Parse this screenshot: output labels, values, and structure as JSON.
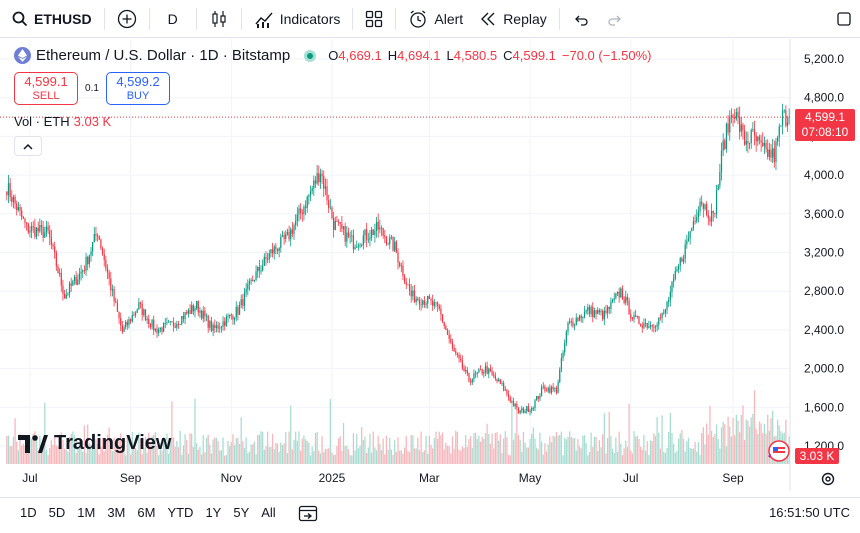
{
  "toolbar": {
    "symbol": "ETHUSD",
    "interval": "D",
    "indicators_label": "Indicators",
    "alert_label": "Alert",
    "replay_label": "Replay",
    "icons": [
      "search-icon",
      "add-symbol-icon",
      "candles-icon",
      "indicators-icon",
      "layouts-icon",
      "alert-clock-icon",
      "replay-icon",
      "undo-icon",
      "redo-icon",
      "fullscreen-icon"
    ]
  },
  "legend": {
    "title": "Ethereum / U.S. Dollar · 1D · Bitstamp",
    "o_label": "O",
    "o": "4,669.1",
    "h_label": "H",
    "h": "4,694.1",
    "l_label": "L",
    "l": "4,580.5",
    "c_label": "C",
    "c": "4,599.1",
    "change": "−70.0 (−1.50%)"
  },
  "trade": {
    "sell_price": "4,599.1",
    "sell_label": "SELL",
    "spread": "0.1",
    "buy_price": "4,599.2",
    "buy_label": "BUY"
  },
  "volume_legend": {
    "label": "Vol · ETH",
    "value": "3.03 K"
  },
  "price_tag": {
    "price": "4,599.1",
    "countdown": "07:08:10"
  },
  "volume_tag": "3.03 K",
  "watermark": "TradingView",
  "bottom_bar": {
    "ranges": [
      "1D",
      "5D",
      "1M",
      "3M",
      "6M",
      "YTD",
      "1Y",
      "5Y",
      "All"
    ],
    "clock": "16:51:50 UTC"
  },
  "colors": {
    "up": "#089981",
    "down": "#f23645",
    "up_vol": "#a7dcd1",
    "down_vol": "#f7b6bb",
    "grid": "#f0f3fa",
    "accent": "#2962ff"
  },
  "chart_data": {
    "type": "candlestick",
    "title": "Ethereum / U.S. Dollar · 1D · Bitstamp",
    "ylim": [
      1200,
      5300
    ],
    "y_ticks": [
      1200,
      1600,
      2000,
      2400,
      2800,
      3200,
      3600,
      4000,
      4400,
      4800,
      5200
    ],
    "y_tick_labels": [
      "1,200.0",
      "1,600.0",
      "2,000.0",
      "2,400.0",
      "2,800.0",
      "3,200.0",
      "3,600.0",
      "4,000.0",
      "4,400.0",
      "4,800.0",
      "5,200.0"
    ],
    "x_tick_labels": [
      "Jul",
      "Sep",
      "Nov",
      "2025",
      "Mar",
      "May",
      "Jul",
      "Sep"
    ],
    "x_tick_indices": [
      14,
      75,
      136,
      197,
      256,
      317,
      378,
      440
    ],
    "grid": true,
    "last_price": 4599.1,
    "series_name": "ETHUSD",
    "anchors": [
      [
        0,
        3880
      ],
      [
        12,
        3450
      ],
      [
        25,
        3400
      ],
      [
        35,
        2750
      ],
      [
        47,
        3050
      ],
      [
        55,
        3420
      ],
      [
        65,
        2700
      ],
      [
        70,
        2380
      ],
      [
        80,
        2650
      ],
      [
        90,
        2400
      ],
      [
        100,
        2450
      ],
      [
        115,
        2650
      ],
      [
        125,
        2400
      ],
      [
        140,
        2600
      ],
      [
        150,
        2950
      ],
      [
        160,
        3200
      ],
      [
        170,
        3350
      ],
      [
        182,
        3750
      ],
      [
        190,
        4050
      ],
      [
        198,
        3500
      ],
      [
        210,
        3300
      ],
      [
        225,
        3450
      ],
      [
        235,
        3250
      ],
      [
        245,
        2750
      ],
      [
        255,
        2700
      ],
      [
        262,
        2600
      ],
      [
        270,
        2200
      ],
      [
        280,
        1880
      ],
      [
        290,
        2000
      ],
      [
        300,
        1820
      ],
      [
        310,
        1550
      ],
      [
        318,
        1600
      ],
      [
        325,
        1800
      ],
      [
        333,
        1780
      ],
      [
        340,
        2450
      ],
      [
        352,
        2600
      ],
      [
        362,
        2550
      ],
      [
        372,
        2800
      ],
      [
        380,
        2500
      ],
      [
        390,
        2450
      ],
      [
        398,
        2550
      ],
      [
        405,
        2950
      ],
      [
        412,
        3300
      ],
      [
        420,
        3750
      ],
      [
        428,
        3550
      ],
      [
        434,
        4300
      ],
      [
        440,
        4700
      ],
      [
        447,
        4350
      ],
      [
        452,
        4400
      ],
      [
        458,
        4250
      ],
      [
        465,
        4200
      ],
      [
        470,
        4600
      ]
    ],
    "volume_scale_note": "relative volumes shown as bars at chart bottom"
  }
}
